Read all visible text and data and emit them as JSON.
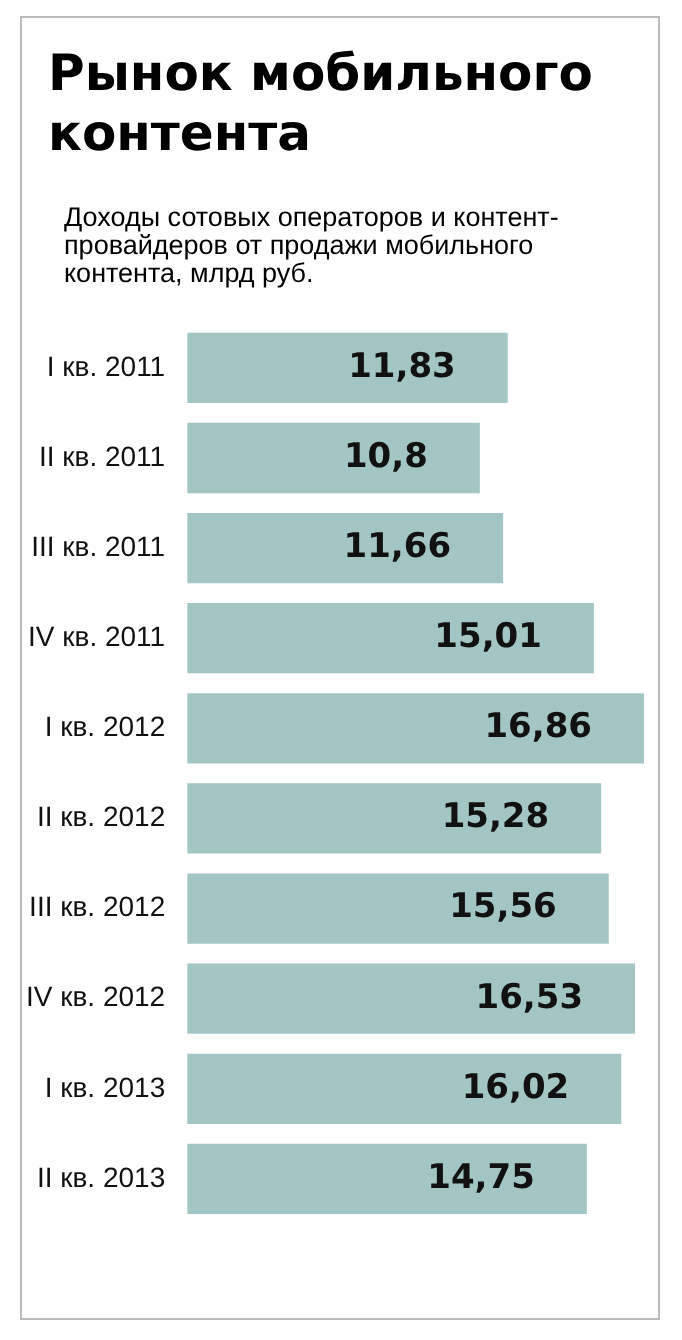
{
  "chart_data": {
    "type": "bar",
    "orientation": "horizontal",
    "title": "Рынок мобильного контента",
    "subtitle": "Доходы сотовых операторов и контент-провайдеров от продажи мобильного контента, млрд руб.",
    "categories": [
      "I кв. 2011",
      "II кв. 2011",
      "III кв. 2011",
      "IV кв. 2011",
      "I кв. 2012",
      "II кв. 2012",
      "III кв. 2012",
      "IV кв. 2012",
      "I кв. 2013",
      "II кв. 2013"
    ],
    "values": [
      11.83,
      10.8,
      11.66,
      15.01,
      16.86,
      15.28,
      15.56,
      16.53,
      16.02,
      14.75
    ],
    "value_labels": [
      "11,83",
      "10,8",
      "11,66",
      "15,01",
      "16,86",
      "15,28",
      "15,56",
      "16,53",
      "16,02",
      "14,75"
    ],
    "color": "#a3c6c4",
    "grid": false,
    "legend": false
  }
}
